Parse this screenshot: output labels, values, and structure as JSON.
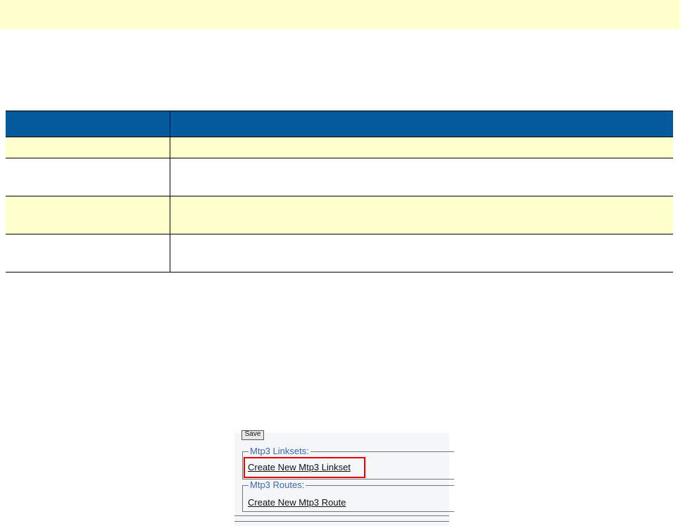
{
  "screenshot": {
    "save_button": "Save",
    "linksets_legend": "Mtp3 Linksets:",
    "linkset_link": "Create New Mtp3 Linkset",
    "routes_legend": "Mtp3 Routes:",
    "route_link": "Create New Mtp3 Route",
    "highlight_color": "#e00000"
  },
  "colors": {
    "header": "#045a9c",
    "banner": "#ffffcc"
  }
}
